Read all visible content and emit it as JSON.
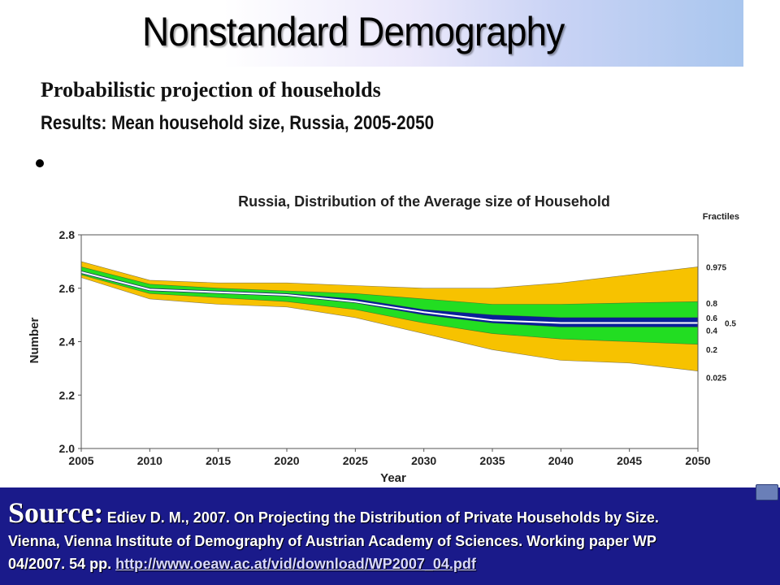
{
  "slide": {
    "title": "Nonstandard Demography",
    "subtitle1": "Probabilistic projection of households",
    "subtitle2": "Results: Mean household size, Russia, 2005-2050"
  },
  "source": {
    "label": "Source:",
    "line1": "Ediev D. M., 2007. On Projecting the Distribution of Private Households by Size.",
    "line2": "Vienna, Vienna Institute of Demography of Austrian Academy of Sciences. Working paper WP",
    "line3": "04/2007. 54 pp.",
    "link": "http://www.oeaw.ac.at/vid/download/WP2007_04.pdf"
  },
  "colors": {
    "outer_band": "#f7c200",
    "inner_band": "#22dd22",
    "core_band": "#0a1f9a",
    "median": "#ffffff",
    "source_bg": "#1a1a8a"
  },
  "chart_data": {
    "type": "area",
    "title": "Russia, Distribution of the Average size of Household",
    "xlabel": "Year",
    "ylabel": "Number",
    "legend_title": "Fractiles",
    "xlim": [
      2005,
      2050
    ],
    "ylim": [
      2.0,
      2.8
    ],
    "xticks": [
      "2005",
      "2010",
      "2015",
      "2020",
      "2025",
      "2030",
      "2035",
      "2040",
      "2045",
      "2050"
    ],
    "yticks": [
      "2.0",
      "2.2",
      "2.4",
      "2.6",
      "2.8"
    ],
    "grid": false,
    "x": [
      2005,
      2010,
      2015,
      2020,
      2025,
      2030,
      2035,
      2040,
      2045,
      2050
    ],
    "series": [
      {
        "name": "0.975",
        "values": [
          2.7,
          2.63,
          2.62,
          2.62,
          2.61,
          2.6,
          2.6,
          2.62,
          2.65,
          2.68
        ]
      },
      {
        "name": "0.8",
        "values": [
          2.68,
          2.615,
          2.6,
          2.59,
          2.58,
          2.56,
          2.54,
          2.54,
          2.545,
          2.55
        ]
      },
      {
        "name": "0.6",
        "values": [
          2.665,
          2.6,
          2.59,
          2.58,
          2.56,
          2.52,
          2.5,
          2.49,
          2.49,
          2.49
        ]
      },
      {
        "name": "0.5",
        "values": [
          2.66,
          2.595,
          2.585,
          2.575,
          2.55,
          2.51,
          2.48,
          2.47,
          2.47,
          2.47
        ]
      },
      {
        "name": "0.4",
        "values": [
          2.655,
          2.59,
          2.58,
          2.57,
          2.545,
          2.5,
          2.47,
          2.455,
          2.455,
          2.455
        ]
      },
      {
        "name": "0.2",
        "values": [
          2.65,
          2.58,
          2.565,
          2.55,
          2.52,
          2.47,
          2.43,
          2.41,
          2.4,
          2.39
        ]
      },
      {
        "name": "0.025",
        "values": [
          2.64,
          2.56,
          2.54,
          2.53,
          2.49,
          2.43,
          2.37,
          2.33,
          2.32,
          2.29
        ]
      }
    ],
    "legend_labels": [
      "0.975",
      "0.8",
      "0.6",
      "0.5",
      "0.4",
      "0.2",
      "0.025"
    ]
  }
}
